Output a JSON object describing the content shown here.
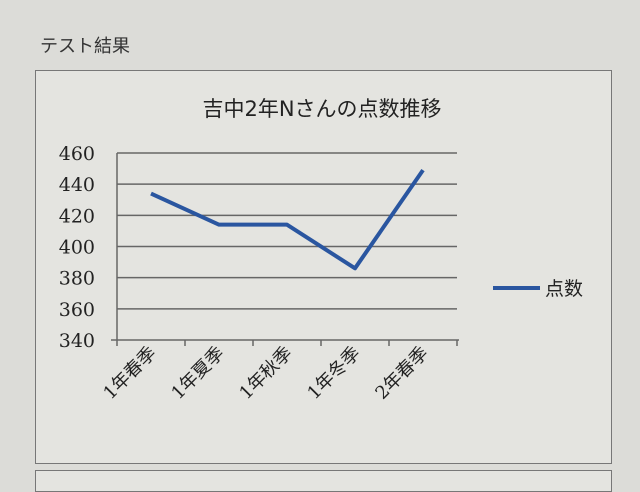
{
  "page": {
    "heading": "テスト結果"
  },
  "chart_data": {
    "type": "line",
    "title": "吉中2年Nさんの点数推移",
    "categories": [
      "1年春季",
      "1年夏季",
      "1年秋季",
      "1年冬季",
      "2年春季"
    ],
    "series": [
      {
        "name": "点数",
        "values": [
          434,
          414,
          414,
          386,
          449
        ],
        "color": "#2a56a0"
      }
    ],
    "ylim": [
      340,
      460
    ],
    "yticks": [
      340,
      360,
      380,
      400,
      420,
      440,
      460
    ],
    "grid": true,
    "legend": "right"
  }
}
